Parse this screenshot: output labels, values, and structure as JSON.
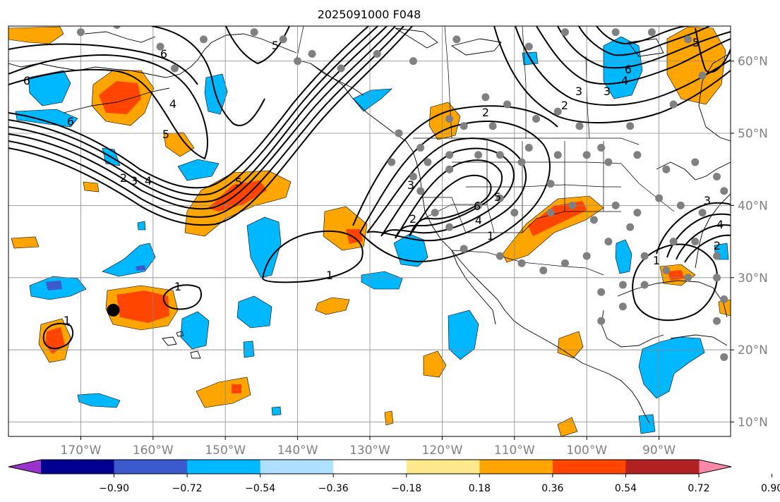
{
  "chart_data": {
    "type": "map-contour",
    "title": "2025091000 F048",
    "projection": "PlateCarree",
    "lon_range": [
      -180,
      -80
    ],
    "lat_range": [
      8,
      65
    ],
    "lon_ticks": [
      -170,
      -160,
      -150,
      -140,
      -130,
      -120,
      -110,
      -100,
      -90
    ],
    "lon_tick_labels": [
      "170°W",
      "160°W",
      "150°W",
      "140°W",
      "130°W",
      "120°W",
      "110°W",
      "100°W",
      "90°W"
    ],
    "lat_ticks": [
      10,
      20,
      30,
      40,
      50,
      60
    ],
    "lat_tick_labels": [
      "10°N",
      "20°N",
      "30°N",
      "40°N",
      "50°N",
      "60°N"
    ],
    "grid": true,
    "colorbar": {
      "orientation": "horizontal",
      "extend": "both",
      "levels": [
        -0.9,
        -0.72,
        -0.54,
        -0.36,
        -0.18,
        0.18,
        0.36,
        0.54,
        0.72,
        0.9
      ],
      "tick_labels": [
        "−0.90",
        "−0.72",
        "−0.54",
        "−0.36",
        "−0.18",
        "0.18",
        "0.36",
        "0.54",
        "0.72",
        "0.90"
      ],
      "colors": [
        "#9933cc",
        "#000090",
        "#3a5acd",
        "#00b8ff",
        "#b0e0ff",
        "#ffffff",
        "#ffe98a",
        "#ffa500",
        "#ff4500",
        "#b22222",
        "#ff88aa"
      ]
    },
    "contour_labels": [
      "6",
      "6",
      "6",
      "5",
      "5",
      "4",
      "3",
      "2",
      "5",
      "4",
      "3",
      "2",
      "1",
      "1",
      "1",
      "6",
      "5",
      "4",
      "3",
      "2",
      "1",
      "6",
      "5",
      "4",
      "3",
      "2",
      "4",
      "3",
      "2",
      "1"
    ],
    "marker": {
      "lon": -165.5,
      "lat": 25.5
    },
    "stations": [
      [
        -165,
        65
      ],
      [
        -170,
        64
      ],
      [
        -159,
        62
      ],
      [
        -153,
        63
      ],
      [
        -146,
        64
      ],
      [
        -157,
        59
      ],
      [
        -140,
        60
      ],
      [
        -138,
        61
      ],
      [
        -142,
        63
      ],
      [
        -134,
        59
      ],
      [
        -129,
        61
      ],
      [
        -124,
        60
      ],
      [
        -118,
        63
      ],
      [
        -108,
        62
      ],
      [
        -103,
        64
      ],
      [
        -96,
        64
      ],
      [
        -91,
        64
      ],
      [
        -86,
        63
      ],
      [
        -84,
        58
      ],
      [
        -88,
        54
      ],
      [
        -94,
        51
      ],
      [
        -98,
        48
      ],
      [
        -101,
        51
      ],
      [
        -104,
        53
      ],
      [
        -107,
        52
      ],
      [
        -111,
        54
      ],
      [
        -114,
        55
      ],
      [
        -113,
        51
      ],
      [
        -117,
        51
      ],
      [
        -119,
        52
      ],
      [
        -123,
        48
      ],
      [
        -126,
        50
      ],
      [
        -127,
        46
      ],
      [
        -124,
        44
      ],
      [
        -122,
        46
      ],
      [
        -119,
        47
      ],
      [
        -115,
        47
      ],
      [
        -112,
        47
      ],
      [
        -108,
        48
      ],
      [
        -104,
        47
      ],
      [
        -100,
        47
      ],
      [
        -97,
        46
      ],
      [
        -93,
        47
      ],
      [
        -89,
        45
      ],
      [
        -85,
        46
      ],
      [
        -82,
        44
      ],
      [
        -123,
        42
      ],
      [
        -121,
        39
      ],
      [
        -119,
        37
      ],
      [
        -115,
        40
      ],
      [
        -112,
        41
      ],
      [
        -110,
        39
      ],
      [
        -105,
        39
      ],
      [
        -102,
        40
      ],
      [
        -99,
        38
      ],
      [
        -96,
        40
      ],
      [
        -93,
        39
      ],
      [
        -90,
        41
      ],
      [
        -87,
        40
      ],
      [
        -84,
        39
      ],
      [
        -81,
        42
      ],
      [
        -117,
        34
      ],
      [
        -112,
        33
      ],
      [
        -109,
        32
      ],
      [
        -106,
        31
      ],
      [
        -103,
        32
      ],
      [
        -100,
        33
      ],
      [
        -97,
        35
      ],
      [
        -94,
        37
      ],
      [
        -92,
        33
      ],
      [
        -88,
        35
      ],
      [
        -85,
        35
      ],
      [
        -82,
        33
      ],
      [
        -98,
        28
      ],
      [
        -95,
        29
      ],
      [
        -92,
        29
      ],
      [
        -89,
        31
      ],
      [
        -86,
        30
      ],
      [
        -82,
        30
      ],
      [
        -81,
        27
      ],
      [
        -82,
        24
      ],
      [
        -81,
        19
      ],
      [
        -95,
        26
      ],
      [
        -98,
        24
      ],
      [
        -119,
        45
      ],
      [
        -105,
        43
      ],
      [
        -109,
        46
      ]
    ]
  }
}
